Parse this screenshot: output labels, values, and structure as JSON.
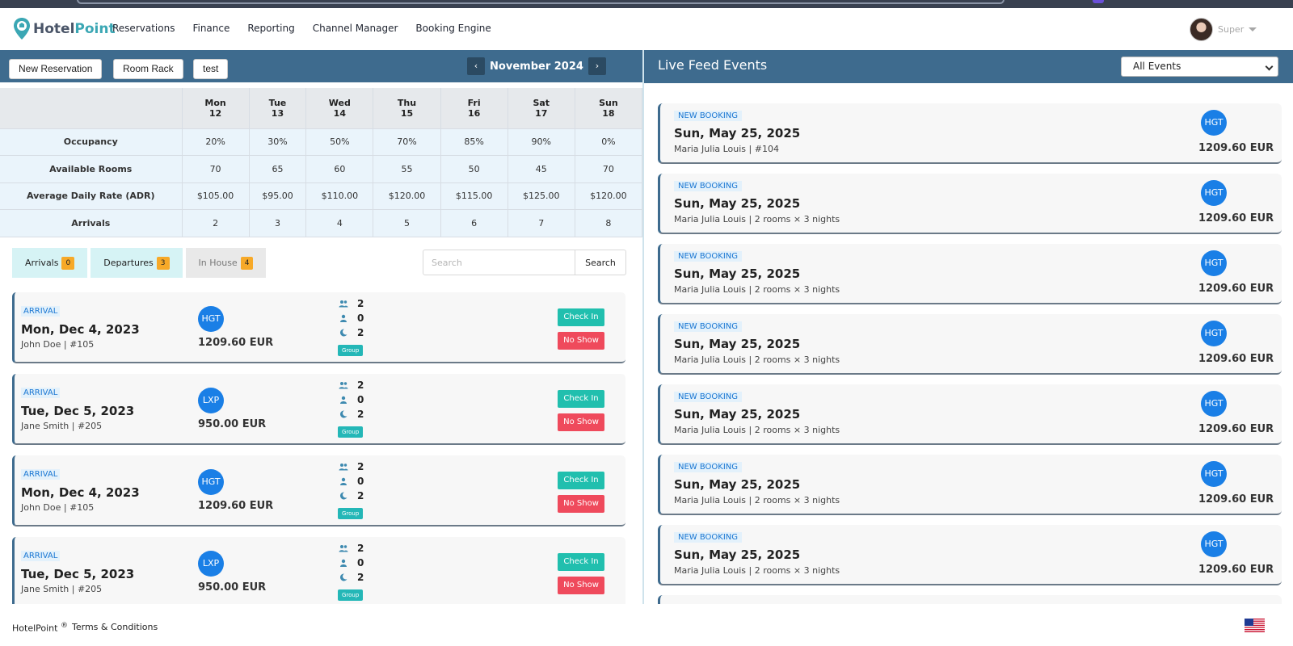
{
  "header": {
    "logo_part1": "Hotel",
    "logo_part2": "Point",
    "nav": [
      "Reservations",
      "Finance",
      "Reporting",
      "Channel Manager",
      "Booking Engine"
    ],
    "user_name": "Super"
  },
  "toolbar": {
    "new_reservation": "New Reservation",
    "room_rack": "Room Rack",
    "test": "test",
    "prev": "‹",
    "next": "›",
    "month": "November 2024"
  },
  "calendar": {
    "days": [
      {
        "dow": "Mon",
        "day": "12"
      },
      {
        "dow": "Tue",
        "day": "13"
      },
      {
        "dow": "Wed",
        "day": "14"
      },
      {
        "dow": "Thu",
        "day": "15"
      },
      {
        "dow": "Fri",
        "day": "16"
      },
      {
        "dow": "Sat",
        "day": "17"
      },
      {
        "dow": "Sun",
        "day": "18"
      }
    ],
    "rows": [
      {
        "label": "Occupancy",
        "values": [
          "20%",
          "30%",
          "50%",
          "70%",
          "85%",
          "90%",
          "0%"
        ]
      },
      {
        "label": "Available Rooms",
        "values": [
          "70",
          "65",
          "60",
          "55",
          "50",
          "45",
          "70"
        ]
      },
      {
        "label": "Average Daily Rate (ADR)",
        "values": [
          "$105.00",
          "$95.00",
          "$110.00",
          "$120.00",
          "$115.00",
          "$125.00",
          "$120.00"
        ]
      },
      {
        "label": "Arrivals",
        "values": [
          "2",
          "3",
          "4",
          "5",
          "6",
          "7",
          "8"
        ]
      }
    ]
  },
  "tabs": [
    {
      "label": "Arrivals",
      "count": "0"
    },
    {
      "label": "Departures",
      "count": "3"
    },
    {
      "label": "In House",
      "count": "4"
    }
  ],
  "search": {
    "placeholder": "Search",
    "button": "Search"
  },
  "reservations": [
    {
      "kind": "ARRIVAL",
      "date": "Mon, Dec 4, 2023",
      "guest": "John Doe | #105",
      "channel": "HGT",
      "amount": "1209.60 EUR",
      "adults": "2",
      "children": "0",
      "nights": "2",
      "tag": "Group",
      "checkin": "Check In",
      "noshow": "No Show"
    },
    {
      "kind": "ARRIVAL",
      "date": "Tue, Dec 5, 2023",
      "guest": "Jane Smith | #205",
      "channel": "LXP",
      "amount": "950.00 EUR",
      "adults": "2",
      "children": "0",
      "nights": "2",
      "tag": "Group",
      "checkin": "Check In",
      "noshow": "No Show"
    },
    {
      "kind": "ARRIVAL",
      "date": "Mon, Dec 4, 2023",
      "guest": "John Doe | #105",
      "channel": "HGT",
      "amount": "1209.60 EUR",
      "adults": "2",
      "children": "0",
      "nights": "2",
      "tag": "Group",
      "checkin": "Check In",
      "noshow": "No Show"
    },
    {
      "kind": "ARRIVAL",
      "date": "Tue, Dec 5, 2023",
      "guest": "Jane Smith | #205",
      "channel": "LXP",
      "amount": "950.00 EUR",
      "adults": "2",
      "children": "0",
      "nights": "2",
      "tag": "Group",
      "checkin": "Check In",
      "noshow": "No Show"
    }
  ],
  "feed": {
    "title": "Live Feed Events",
    "filter": "All Events",
    "events": [
      {
        "kind": "NEW BOOKING",
        "date": "Sun, May 25, 2025",
        "detail": "Maria Julia Louis | #104",
        "channel": "HGT",
        "amount": "1209.60 EUR"
      },
      {
        "kind": "NEW BOOKING",
        "date": "Sun, May 25, 2025",
        "detail": "Maria Julia Louis | 2 rooms × 3 nights",
        "channel": "HGT",
        "amount": "1209.60 EUR"
      },
      {
        "kind": "NEW BOOKING",
        "date": "Sun, May 25, 2025",
        "detail": "Maria Julia Louis | 2 rooms × 3 nights",
        "channel": "HGT",
        "amount": "1209.60 EUR"
      },
      {
        "kind": "NEW BOOKING",
        "date": "Sun, May 25, 2025",
        "detail": "Maria Julia Louis | 2 rooms × 3 nights",
        "channel": "HGT",
        "amount": "1209.60 EUR"
      },
      {
        "kind": "NEW BOOKING",
        "date": "Sun, May 25, 2025",
        "detail": "Maria Julia Louis | 2 rooms × 3 nights",
        "channel": "HGT",
        "amount": "1209.60 EUR"
      },
      {
        "kind": "NEW BOOKING",
        "date": "Sun, May 25, 2025",
        "detail": "Maria Julia Louis | 2 rooms × 3 nights",
        "channel": "HGT",
        "amount": "1209.60 EUR"
      },
      {
        "kind": "NEW BOOKING",
        "date": "Sun, May 25, 2025",
        "detail": "Maria Julia Louis | 2 rooms × 3 nights",
        "channel": "HGT",
        "amount": "1209.60 EUR"
      }
    ]
  },
  "footer": {
    "brand": "HotelPoint",
    "reg": "®",
    "terms": "Terms & Conditions"
  },
  "colors": {
    "header_bar": "#3e6b8e",
    "accent_teal": "#21bfae",
    "danger": "#ef4a5c",
    "channel_blue": "#1a7fe6",
    "badge_orange": "#f7a928"
  }
}
